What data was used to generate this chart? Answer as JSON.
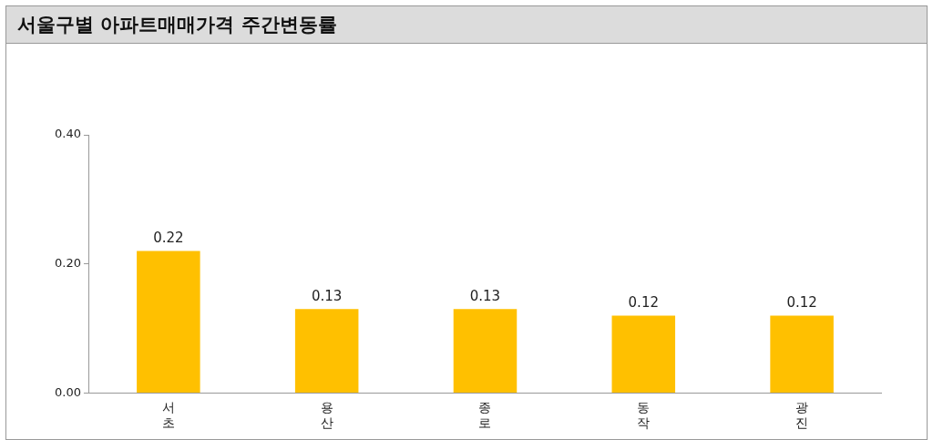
{
  "chart_data": {
    "type": "bar",
    "title": "서울구별 아파트매매가격 주간변동률",
    "categories": [
      "서초",
      "용산",
      "종로",
      "동작",
      "광진"
    ],
    "values": [
      0.22,
      0.13,
      0.13,
      0.12,
      0.12
    ],
    "color": "#ffc000",
    "ylim": [
      0,
      0.4
    ],
    "yticks": [
      {
        "value": 0,
        "label": "0.00"
      },
      {
        "value": 0.2,
        "label": "0.20"
      },
      {
        "value": 0.4,
        "label": "0.40"
      }
    ],
    "grid": false,
    "data_labels": true
  }
}
